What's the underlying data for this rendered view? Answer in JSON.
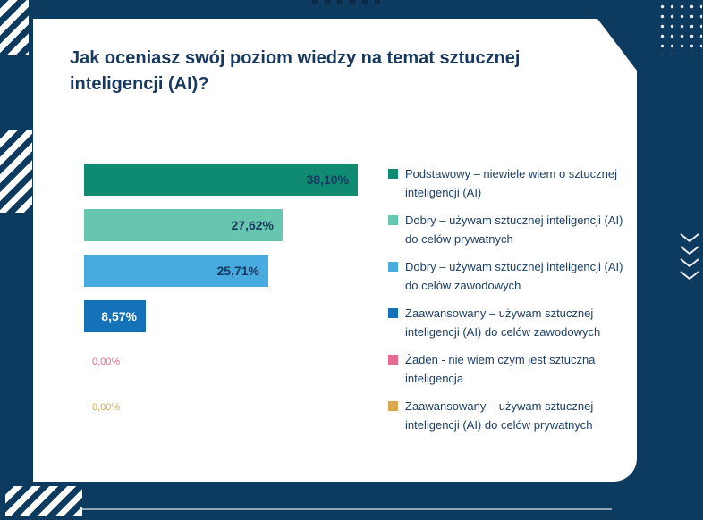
{
  "colors": {
    "background_navy": "#0d3a5f",
    "card_white": "#ffffff",
    "text_navy": "#17395f"
  },
  "chart_data": {
    "type": "bar",
    "orientation": "horizontal",
    "title": "Jak oceniasz swój poziom wiedzy na temat sztucznej inteligencji (AI)?",
    "value_suffix": "%",
    "x_max": 40,
    "grid": false,
    "legend_position": "right",
    "series": [
      {
        "label": "Podstawowy – niewiele wiem o sztucznej inteligencji (AI)",
        "value": 38.1,
        "display": "38,10%",
        "color": "#0f8b72",
        "value_label_color": "#17395f"
      },
      {
        "label": "Dobry – używam sztucznej inteligencji (AI) do celów prywatnych",
        "value": 27.62,
        "display": "27,62%",
        "color": "#66c6ae",
        "value_label_color": "#17395f"
      },
      {
        "label": "Dobry – używam sztucznej inteligencji (AI) do celów zawodowych",
        "value": 25.71,
        "display": "25,71%",
        "color": "#47abdf",
        "value_label_color": "#17395f"
      },
      {
        "label": "Zaawansowany – używam sztucznej inteligencji (AI) do celów zawodowych",
        "value": 8.57,
        "display": "8,57%",
        "color": "#1571b8",
        "value_label_color": "#ffffff"
      },
      {
        "label": "Żaden - nie wiem czym jest sztuczna inteligencja",
        "value": 0,
        "display": "0,00%",
        "color": "#e76a93",
        "value_label_color": "#e76a93"
      },
      {
        "label": "Zaawansowany – używam sztucznej inteligencji (AI) do celów prywatnych",
        "value": 0,
        "display": "0,00%",
        "color": "#d8a84e",
        "value_label_color": "#d8a84e"
      }
    ]
  }
}
